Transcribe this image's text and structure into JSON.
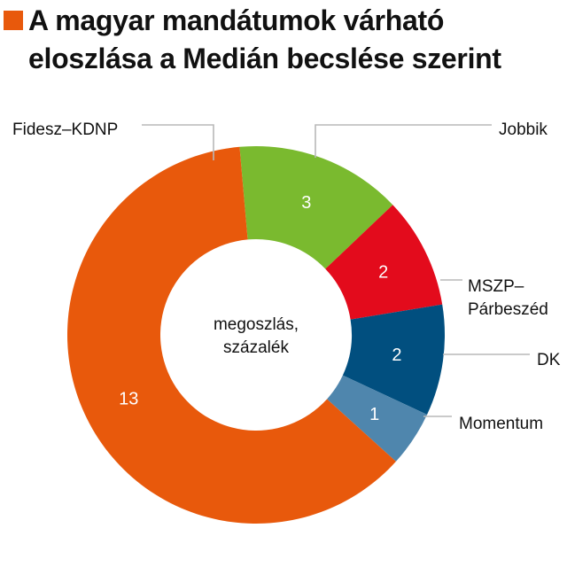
{
  "colors": {
    "title_marker": "#e8590c",
    "leader_line": "#b8b8b8",
    "slice_label": "#ffffff",
    "outer_label": "#111111"
  },
  "chart_data": {
    "type": "pie",
    "title_lines": [
      "A magyar mandátumok várható",
      "eloszlása a Medián becslése szerint"
    ],
    "center_label_lines": [
      "megoszlás,",
      "százalék"
    ],
    "slices": [
      {
        "label": "Jobbik",
        "label_lines": [
          "Jobbik"
        ],
        "value": 3,
        "value_label": "3",
        "color": "#7aba2f"
      },
      {
        "label": "MSZP–Párbeszéd",
        "label_lines": [
          "MSZP–",
          "Párbeszéd"
        ],
        "value": 2,
        "value_label": "2",
        "color": "#e30b1c"
      },
      {
        "label": "DK",
        "label_lines": [
          "DK"
        ],
        "value": 2,
        "value_label": "2",
        "color": "#014f7f"
      },
      {
        "label": "Momentum",
        "label_lines": [
          "Momentum"
        ],
        "value": 1,
        "value_label": "1",
        "color": "#4f86ad"
      },
      {
        "label": "Fidesz–KDNP",
        "label_lines": [
          "Fidesz–KDNP"
        ],
        "value": 13,
        "value_label": "13",
        "color": "#e8590c"
      }
    ]
  }
}
